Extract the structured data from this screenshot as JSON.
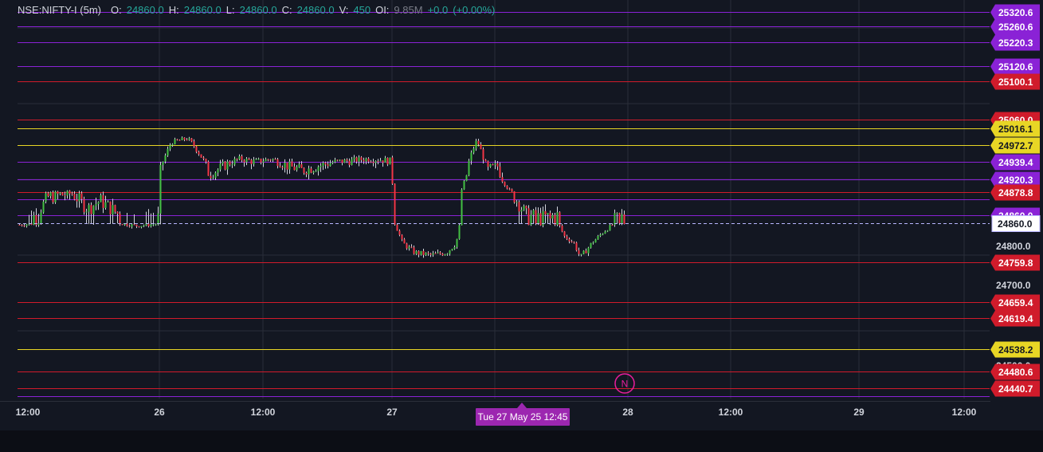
{
  "legend": {
    "symbol": "NSE:NIFTY-I (5m)",
    "o_label": "O:",
    "o_value": "24860.0",
    "h_label": "H:",
    "h_value": "24860.0",
    "l_label": "L:",
    "l_value": "24860.0",
    "c_label": "C:",
    "c_value": "24860.0",
    "v_label": "V:",
    "v_value": "450",
    "oi_label": "OI:",
    "oi_value": "9.85M",
    "change": "+0.0",
    "change_pct": "(+0.00%)"
  },
  "colors": {
    "background": "#131722",
    "up": "#26a69a",
    "up_candle": "#43c043",
    "down": "#f23645",
    "red_level": "#d01b2b",
    "purple_level": "#8a22d6",
    "yellow_level": "#e8d625",
    "grid": "#2a2e39",
    "price_line": "#b8b6ff"
  },
  "current_price": "24860.0",
  "crosshair_label": "Tue 27 May 25 12:45",
  "n_marker": "N",
  "price_axis": {
    "ticks": [
      "24800.0",
      "24700.0",
      "24500.0"
    ],
    "labels": [
      {
        "text": "25320.6",
        "value": 25320.6,
        "color": "purple"
      },
      {
        "text": "25260.6",
        "value": 25260.6,
        "color": "purple"
      },
      {
        "text": "25220.3",
        "value": 25220.3,
        "color": "purple"
      },
      {
        "text": "25120.6",
        "value": 25120.6,
        "color": "purple"
      },
      {
        "text": "25100.1",
        "value": 25100.1,
        "color": "red"
      },
      {
        "text": "25060.0",
        "value": 25060.0,
        "color": "red"
      },
      {
        "text": "25016.1",
        "value": 25016.1,
        "color": "yellow"
      },
      {
        "text": "24972.7",
        "value": 24972.7,
        "color": "yellow"
      },
      {
        "text": "24939.4",
        "value": 24939.4,
        "color": "purple"
      },
      {
        "text": "24920.3",
        "value": 24920.3,
        "color": "purple"
      },
      {
        "text": "24878.8",
        "value": 24878.8,
        "color": "red"
      },
      {
        "text": "24860.0",
        "value": 24860.0,
        "color": "purple"
      },
      {
        "text": "24759.8",
        "value": 24759.8,
        "color": "red"
      },
      {
        "text": "24659.4",
        "value": 24659.4,
        "color": "red"
      },
      {
        "text": "24619.4",
        "value": 24619.4,
        "color": "red"
      },
      {
        "text": "24538.2",
        "value": 24538.2,
        "color": "yellow"
      },
      {
        "text": "24480.6",
        "value": 24480.6,
        "color": "red"
      },
      {
        "text": "24440.7",
        "value": 24440.7,
        "color": "red"
      }
    ]
  },
  "time_axis": {
    "labels": [
      "12:00",
      "26",
      "12:00",
      "27",
      "28",
      "12:00",
      "29",
      "12:00"
    ]
  }
}
